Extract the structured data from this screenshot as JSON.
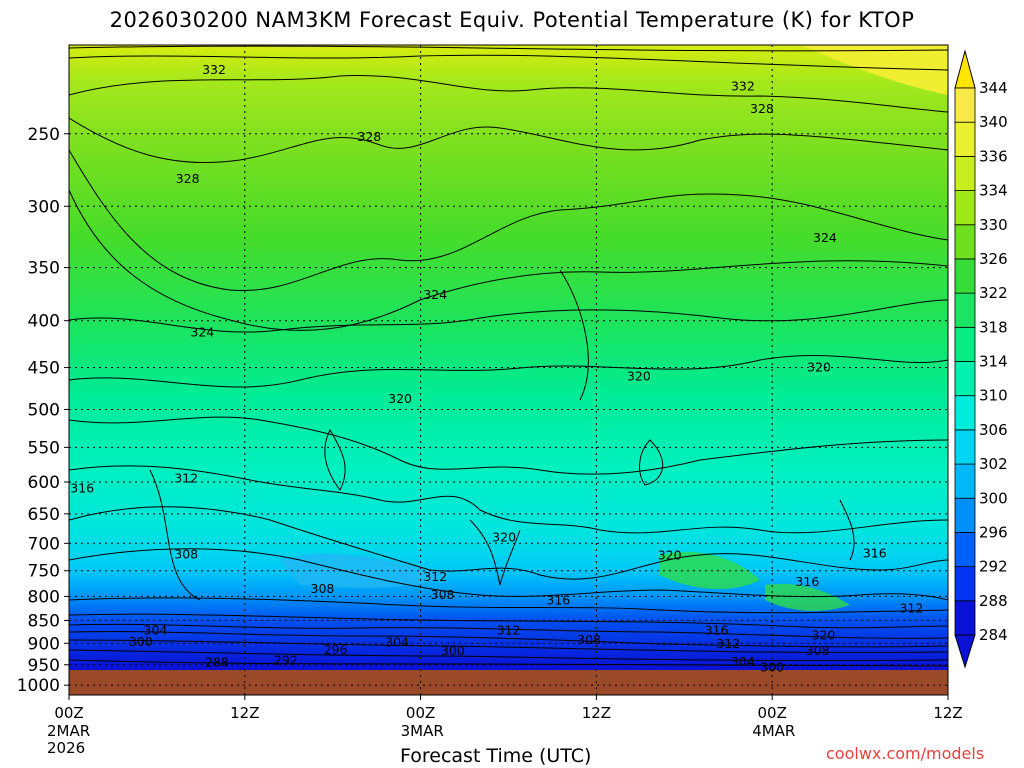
{
  "title": "2026030200 NAM3KM Forecast Equiv. Potential Temperature (K) for KTOP",
  "credit": "coolwx.com/models",
  "chart_data": {
    "type": "heatmap",
    "title": "2026030200 NAM3KM Forecast Equiv. Potential Temperature (K) for KTOP",
    "xlabel": "Forecast Time (UTC)",
    "ylabel": "",
    "grid": true,
    "x_ticks": [
      {
        "hour": 0,
        "label": "00Z",
        "sub": [
          "2MAR",
          "2026"
        ]
      },
      {
        "hour": 12,
        "label": "12Z",
        "sub": []
      },
      {
        "hour": 24,
        "label": "00Z",
        "sub": [
          "3MAR"
        ]
      },
      {
        "hour": 36,
        "label": "12Z",
        "sub": []
      },
      {
        "hour": 48,
        "label": "00Z",
        "sub": [
          "4MAR"
        ]
      },
      {
        "hour": 60,
        "label": "12Z",
        "sub": []
      }
    ],
    "xlim": [
      0,
      60
    ],
    "y_ticks": [
      250,
      300,
      350,
      400,
      450,
      500,
      550,
      600,
      650,
      700,
      750,
      800,
      850,
      900,
      950,
      1000
    ],
    "ylim": [
      200,
      1025
    ],
    "y_scale": "log",
    "colorbar": {
      "levels": [
        284,
        288,
        292,
        296,
        300,
        302,
        306,
        310,
        314,
        318,
        322,
        326,
        330,
        334,
        336,
        340,
        344
      ],
      "colors": [
        "#0a12d8",
        "#0034f0",
        "#0060f8",
        "#0090f8",
        "#00b8f8",
        "#00d6f4",
        "#00ecdc",
        "#00f0b0",
        "#08ec84",
        "#1ee464",
        "#38dc38",
        "#6ee020",
        "#a0e818",
        "#c8ee20",
        "#e8f030",
        "#f8e848",
        "#ffe400"
      ]
    },
    "ground": {
      "color": "#9a4a28"
    },
    "contour_labels": [
      {
        "value": "332",
        "hour": 9.9,
        "p": 213
      },
      {
        "value": "332",
        "hour": 46.0,
        "p": 222
      },
      {
        "value": "328",
        "hour": 47.3,
        "p": 235
      },
      {
        "value": "328",
        "hour": 20.5,
        "p": 252
      },
      {
        "value": "328",
        "hour": 8.1,
        "p": 280
      },
      {
        "value": "324",
        "hour": 51.6,
        "p": 325
      },
      {
        "value": "324",
        "hour": 25.0,
        "p": 375
      },
      {
        "value": "324",
        "hour": 9.1,
        "p": 412
      },
      {
        "value": "320",
        "hour": 38.9,
        "p": 460
      },
      {
        "value": "320",
        "hour": 51.2,
        "p": 450
      },
      {
        "value": "320",
        "hour": 22.6,
        "p": 487
      },
      {
        "value": "316",
        "hour": 0.9,
        "p": 610
      },
      {
        "value": "312",
        "hour": 8.0,
        "p": 595
      },
      {
        "value": "308",
        "hour": 8.0,
        "p": 720
      },
      {
        "value": "308",
        "hour": 17.3,
        "p": 785
      },
      {
        "value": "312",
        "hour": 25.0,
        "p": 762
      },
      {
        "value": "308",
        "hour": 25.5,
        "p": 797
      },
      {
        "value": "320",
        "hour": 29.7,
        "p": 690
      },
      {
        "value": "316",
        "hour": 33.4,
        "p": 808
      },
      {
        "value": "320",
        "hour": 41.0,
        "p": 722
      },
      {
        "value": "316",
        "hour": 55.0,
        "p": 718
      },
      {
        "value": "316",
        "hour": 50.4,
        "p": 772
      },
      {
        "value": "312",
        "hour": 57.5,
        "p": 825
      },
      {
        "value": "316",
        "hour": 44.2,
        "p": 872
      },
      {
        "value": "320",
        "hour": 51.5,
        "p": 883
      },
      {
        "value": "312",
        "hour": 45.0,
        "p": 902
      },
      {
        "value": "308",
        "hour": 51.1,
        "p": 918
      },
      {
        "value": "304",
        "hour": 5.9,
        "p": 872
      },
      {
        "value": "300",
        "hour": 4.9,
        "p": 897
      },
      {
        "value": "296",
        "hour": 18.2,
        "p": 915
      },
      {
        "value": "304",
        "hour": 22.4,
        "p": 898
      },
      {
        "value": "300",
        "hour": 26.2,
        "p": 918
      },
      {
        "value": "312",
        "hour": 30.0,
        "p": 872
      },
      {
        "value": "308",
        "hour": 35.5,
        "p": 893
      },
      {
        "value": "288",
        "hour": 10.1,
        "p": 945
      },
      {
        "value": "292",
        "hour": 14.8,
        "p": 940
      },
      {
        "value": "304",
        "hour": 46.0,
        "p": 943
      },
      {
        "value": "300",
        "hour": 48.0,
        "p": 957
      }
    ]
  }
}
